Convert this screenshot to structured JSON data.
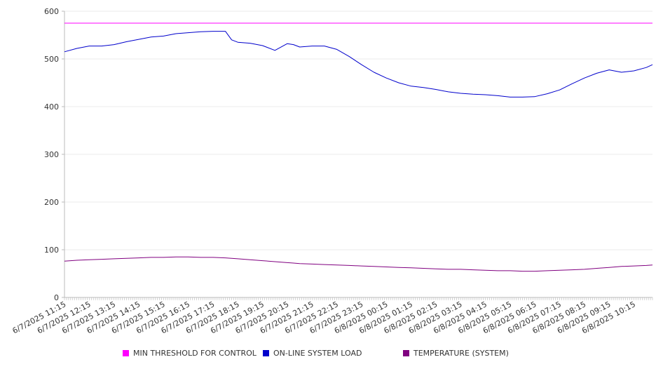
{
  "chart_data": {
    "type": "line",
    "title": "",
    "xlabel": "",
    "ylabel": "",
    "ylim": [
      0,
      600
    ],
    "y_ticks": [
      0,
      100,
      200,
      300,
      400,
      500,
      600
    ],
    "grid": "horizontal",
    "legend_placement": "bottom",
    "x_tick_labels": [
      "6/7/2025 11:15",
      "6/7/2025 12:15",
      "6/7/2025 13:15",
      "6/7/2025 14:15",
      "6/7/2025 15:15",
      "6/7/2025 16:15",
      "6/7/2025 17:15",
      "6/7/2025 18:15",
      "6/7/2025 19:15",
      "6/7/2025 20:15",
      "6/7/2025 21:15",
      "6/7/2025 22:15",
      "6/7/2025 23:15",
      "6/8/2025 00:15",
      "6/8/2025 01:15",
      "6/8/2025 02:15",
      "6/8/2025 03:15",
      "6/8/2025 04:15",
      "6/8/2025 05:15",
      "6/8/2025 06:15",
      "6/8/2025 07:15",
      "6/8/2025 08:15",
      "6/8/2025 09:15",
      "6/8/2025 10:15"
    ],
    "x": [
      "6/7/2025 11:15",
      "6/7/2025 11:45",
      "6/7/2025 12:15",
      "6/7/2025 12:45",
      "6/7/2025 13:15",
      "6/7/2025 13:45",
      "6/7/2025 14:15",
      "6/7/2025 14:45",
      "6/7/2025 15:15",
      "6/7/2025 15:45",
      "6/7/2025 16:15",
      "6/7/2025 16:45",
      "6/7/2025 17:15",
      "6/7/2025 17:45",
      "6/7/2025 18:00",
      "6/7/2025 18:15",
      "6/7/2025 18:45",
      "6/7/2025 19:15",
      "6/7/2025 19:45",
      "6/7/2025 20:15",
      "6/7/2025 20:30",
      "6/7/2025 20:45",
      "6/7/2025 21:15",
      "6/7/2025 21:45",
      "6/7/2025 22:15",
      "6/7/2025 22:45",
      "6/7/2025 23:15",
      "6/7/2025 23:45",
      "6/8/2025 00:15",
      "6/8/2025 00:45",
      "6/8/2025 01:15",
      "6/8/2025 01:45",
      "6/8/2025 02:15",
      "6/8/2025 02:45",
      "6/8/2025 03:15",
      "6/8/2025 03:45",
      "6/8/2025 04:15",
      "6/8/2025 04:45",
      "6/8/2025 05:15",
      "6/8/2025 05:45",
      "6/8/2025 06:15",
      "6/8/2025 06:45",
      "6/8/2025 07:15",
      "6/8/2025 07:45",
      "6/8/2025 08:15",
      "6/8/2025 08:45",
      "6/8/2025 09:15",
      "6/8/2025 09:45",
      "6/8/2025 10:15",
      "6/8/2025 10:45",
      "6/8/2025 11:00"
    ],
    "series": [
      {
        "name": "MIN THRESHOLD FOR CONTROL",
        "color": "#ff00ff",
        "values": [
          575,
          575,
          575,
          575,
          575,
          575,
          575,
          575,
          575,
          575,
          575,
          575,
          575,
          575,
          575,
          575,
          575,
          575,
          575,
          575,
          575,
          575,
          575,
          575,
          575,
          575,
          575,
          575,
          575,
          575,
          575,
          575,
          575,
          575,
          575,
          575,
          575,
          575,
          575,
          575,
          575,
          575,
          575,
          575,
          575,
          575,
          575,
          575,
          575,
          575,
          575
        ]
      },
      {
        "name": "ON-LINE SYSTEM LOAD",
        "color": "#0000cc",
        "values": [
          515,
          522,
          527,
          527,
          530,
          536,
          541,
          546,
          548,
          553,
          555,
          557,
          558,
          558,
          540,
          535,
          533,
          528,
          518,
          532,
          530,
          525,
          527,
          527,
          520,
          505,
          488,
          472,
          460,
          450,
          443,
          440,
          436,
          431,
          428,
          426,
          425,
          423,
          420,
          420,
          421,
          427,
          435,
          448,
          460,
          470,
          477,
          472,
          475,
          482,
          488
        ]
      },
      {
        "name": "TEMPERATURE (SYSTEM)",
        "color": "#800080",
        "values": [
          76,
          78,
          79,
          80,
          81,
          82,
          83,
          84,
          84,
          85,
          85,
          84,
          84,
          83,
          82,
          81,
          79,
          77,
          75,
          73,
          72,
          71,
          70,
          69,
          68,
          67,
          66,
          65,
          64,
          63,
          62,
          61,
          60,
          59,
          59,
          58,
          57,
          56,
          56,
          55,
          55,
          56,
          57,
          58,
          59,
          61,
          63,
          65,
          66,
          67,
          68
        ]
      }
    ]
  }
}
